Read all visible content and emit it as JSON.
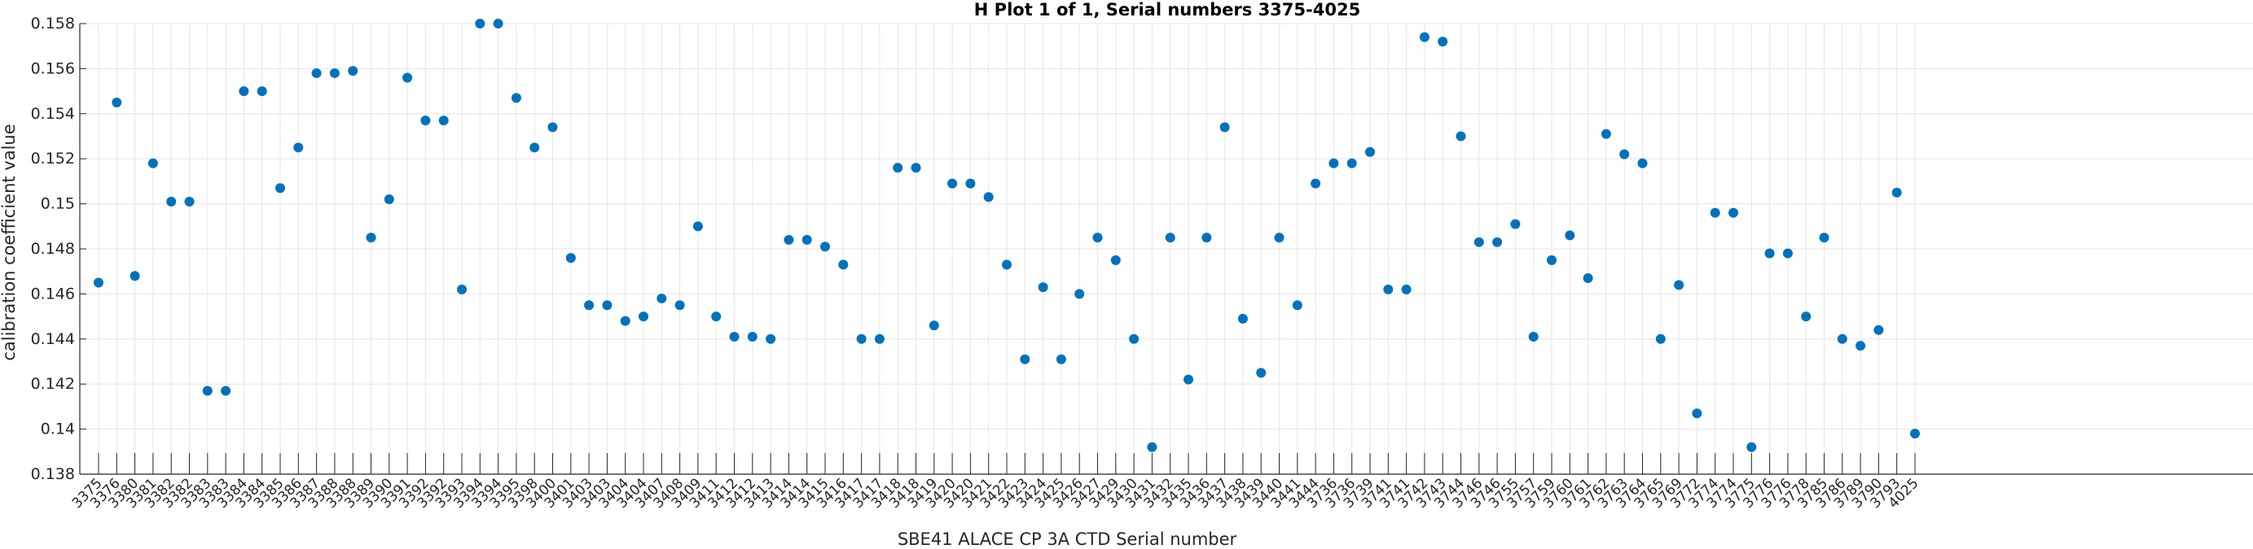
{
  "chart_data": {
    "type": "scatter",
    "title": "H Plot 1 of 1, Serial numbers 3375-4025",
    "xlabel": "SBE41 ALACE CP 3A CTD Serial number",
    "ylabel": "calibration coefficient value",
    "ylim": [
      0.138,
      0.158
    ],
    "yticks": [
      0.138,
      0.14,
      0.142,
      0.144,
      0.146,
      0.148,
      0.15,
      0.152,
      0.154,
      0.156,
      0.158
    ],
    "ytick_labels": [
      "0.138",
      "0.14",
      "0.142",
      "0.144",
      "0.146",
      "0.148",
      "0.15",
      "0.152",
      "0.154",
      "0.156",
      "0.158"
    ],
    "grid": true,
    "marker_color": "#0072BD",
    "categories": [
      "3375",
      "3376",
      "3380",
      "3381",
      "3382",
      "3382",
      "3383",
      "3383",
      "3384",
      "3384",
      "3385",
      "3386",
      "3387",
      "3388",
      "3388",
      "3389",
      "3390",
      "3391",
      "3392",
      "3392",
      "3393",
      "3394",
      "3394",
      "3395",
      "3398",
      "3400",
      "3401",
      "3403",
      "3403",
      "3404",
      "3404",
      "3407",
      "3408",
      "3409",
      "3411",
      "3412",
      "3412",
      "3413",
      "3414",
      "3414",
      "3415",
      "3416",
      "3417",
      "3417",
      "3418",
      "3418",
      "3419",
      "3420",
      "3420",
      "3421",
      "3422",
      "3423",
      "3424",
      "3425",
      "3426",
      "3427",
      "3429",
      "3430",
      "3431",
      "3432",
      "3435",
      "3436",
      "3437",
      "3438",
      "3439",
      "3440",
      "3441",
      "3444",
      "3736",
      "3736",
      "3739",
      "3741",
      "3741",
      "3742",
      "3743",
      "3744",
      "3746",
      "3746",
      "3755",
      "3757",
      "3759",
      "3760",
      "3761",
      "3762",
      "3763",
      "3764",
      "3765",
      "3769",
      "3772",
      "3774",
      "3774",
      "3775",
      "3776",
      "3776",
      "3778",
      "3785",
      "3786",
      "3789",
      "3790",
      "3793",
      "4025"
    ],
    "values": [
      0.1465,
      0.1545,
      0.1468,
      0.1518,
      0.1501,
      0.1501,
      0.1417,
      0.1417,
      0.155,
      0.155,
      0.1507,
      0.1525,
      0.1558,
      0.1558,
      0.1559,
      0.1485,
      0.1502,
      0.1556,
      0.1537,
      0.1537,
      0.1462,
      0.158,
      0.158,
      0.1547,
      0.1525,
      0.1534,
      0.1476,
      0.1455,
      0.1455,
      0.1448,
      0.145,
      0.1458,
      0.1455,
      0.149,
      0.145,
      0.1441,
      0.1441,
      0.144,
      0.1484,
      0.1484,
      0.1481,
      0.1473,
      0.144,
      0.144,
      0.1516,
      0.1516,
      0.1446,
      0.1509,
      0.1509,
      0.1503,
      0.1473,
      0.1431,
      0.1463,
      0.1431,
      0.146,
      0.1485,
      0.1475,
      0.144,
      0.1392,
      0.1485,
      0.1422,
      0.1485,
      0.1534,
      0.1449,
      0.1425,
      0.1485,
      0.1455,
      0.1509,
      0.1518,
      0.1518,
      0.1523,
      0.1462,
      0.1462,
      0.1574,
      0.1572,
      0.153,
      0.1483,
      0.1483,
      0.1491,
      0.1441,
      0.1475,
      0.1486,
      0.1467,
      0.1531,
      0.1522,
      0.1518,
      0.144,
      0.1464,
      0.1407,
      0.1496,
      0.1496,
      0.1392,
      0.1478,
      0.1478,
      0.145,
      0.1485,
      0.144,
      0.1437,
      0.1444,
      0.1505,
      0.1398
    ]
  }
}
